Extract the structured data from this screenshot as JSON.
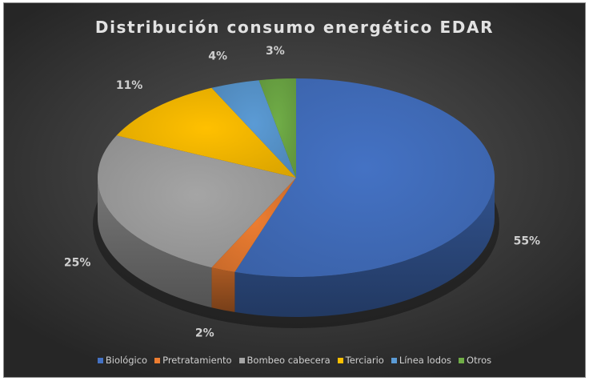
{
  "chart_data": {
    "type": "pie",
    "title": "Distribución consumo energético EDAR",
    "categories": [
      "Biológico",
      "Pretratamiento",
      "Bombeo cabecera",
      "Terciario",
      "Línea lodos",
      "Otros"
    ],
    "values": [
      55,
      2,
      25,
      11,
      4,
      3
    ],
    "data_labels": [
      "55%",
      "2%",
      "25%",
      "11%",
      "4%",
      "3%"
    ],
    "colors": [
      "#4472C4",
      "#ED7D31",
      "#A5A5A5",
      "#FFC000",
      "#5B9BD5",
      "#70AD47"
    ],
    "legend_position": "bottom",
    "style": "3d"
  }
}
